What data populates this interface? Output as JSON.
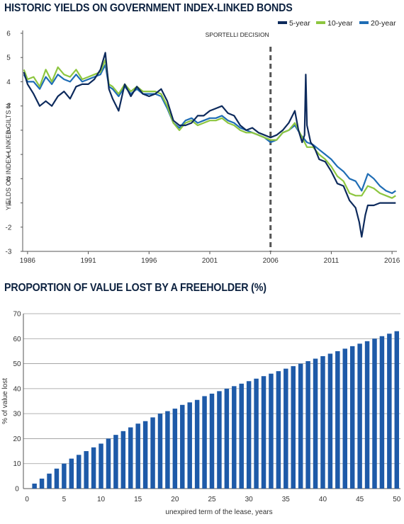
{
  "chart_data": [
    {
      "type": "line",
      "title": "HISTORIC YIELDS ON GOVERNMENT INDEX-LINKED BONDS",
      "ylabel": "YIELDS ON INDEX-LINKED GILTS %",
      "xlabel": "",
      "xlim": [
        1985.6,
        2016.4
      ],
      "ylim": [
        -3,
        6
      ],
      "xticks": [
        "1986",
        "1991",
        "1996",
        "2001",
        "2006",
        "2011",
        "2016"
      ],
      "yticks": [
        "6",
        "5",
        "4",
        "3",
        "2",
        "1",
        "0",
        "-1",
        "-2",
        "-3"
      ],
      "grid": false,
      "legend": "top-right",
      "annotation": {
        "text": "SPORTELLI DECISION",
        "x": 2006
      },
      "series": [
        {
          "name": "5-year",
          "color": "#0d2a5c",
          "x": [
            1985.7,
            1986.0,
            1986.5,
            1987.0,
            1987.5,
            1988.0,
            1988.5,
            1989.0,
            1989.5,
            1990.0,
            1990.5,
            1991.0,
            1991.5,
            1992.0,
            1992.4,
            1992.7,
            1993.0,
            1993.5,
            1994.0,
            1994.5,
            1995.0,
            1995.5,
            1996.0,
            1996.5,
            1997.0,
            1997.5,
            1998.0,
            1998.5,
            1999.0,
            1999.5,
            2000.0,
            2000.5,
            2001.0,
            2001.5,
            2002.0,
            2002.5,
            2003.0,
            2003.5,
            2004.0,
            2004.5,
            2005.0,
            2005.5,
            2006.0,
            2006.5,
            2007.0,
            2007.5,
            2008.0,
            2008.3,
            2008.6,
            2008.8,
            2008.9,
            2009.0,
            2009.3,
            2009.6,
            2010.0,
            2010.5,
            2011.0,
            2011.5,
            2012.0,
            2012.5,
            2013.0,
            2013.3,
            2013.5,
            2013.8,
            2014.0,
            2014.5,
            2015.0,
            2015.5,
            2016.0,
            2016.3
          ],
          "y": [
            4.4,
            3.9,
            3.5,
            3.0,
            3.2,
            3.0,
            3.4,
            3.6,
            3.3,
            3.8,
            3.9,
            3.9,
            4.1,
            4.5,
            5.2,
            3.7,
            3.3,
            2.8,
            3.9,
            3.4,
            3.8,
            3.5,
            3.4,
            3.5,
            3.7,
            3.2,
            2.4,
            2.2,
            2.2,
            2.3,
            2.6,
            2.6,
            2.8,
            2.9,
            3.0,
            2.7,
            2.6,
            2.2,
            2.0,
            2.1,
            1.9,
            1.8,
            1.7,
            1.8,
            2.0,
            2.3,
            2.8,
            2.0,
            1.5,
            1.8,
            4.3,
            2.2,
            1.5,
            1.3,
            0.8,
            0.7,
            0.3,
            -0.2,
            -0.3,
            -0.9,
            -1.2,
            -1.8,
            -2.4,
            -1.5,
            -1.1,
            -1.1,
            -1.0,
            -1.0,
            -1.0,
            -1.0
          ]
        },
        {
          "name": "10-year",
          "color": "#8dc63f",
          "x": [
            1985.7,
            1986.0,
            1986.5,
            1987.0,
            1987.5,
            1988.0,
            1988.5,
            1989.0,
            1989.5,
            1990.0,
            1990.5,
            1991.0,
            1991.5,
            1992.0,
            1992.4,
            1992.7,
            1993.0,
            1993.5,
            1994.0,
            1994.5,
            1995.0,
            1995.5,
            1996.0,
            1996.5,
            1997.0,
            1997.5,
            1998.0,
            1998.5,
            1999.0,
            1999.5,
            2000.0,
            2000.5,
            2001.0,
            2001.5,
            2002.0,
            2002.5,
            2003.0,
            2003.5,
            2004.0,
            2004.5,
            2005.0,
            2005.5,
            2006.0,
            2006.5,
            2007.0,
            2007.5,
            2008.0,
            2008.5,
            2009.0,
            2009.5,
            2010.0,
            2010.5,
            2011.0,
            2011.5,
            2012.0,
            2012.5,
            2013.0,
            2013.5,
            2014.0,
            2014.5,
            2015.0,
            2015.5,
            2016.0,
            2016.3
          ],
          "y": [
            4.5,
            4.1,
            4.2,
            3.8,
            4.5,
            4.0,
            4.6,
            4.3,
            4.2,
            4.5,
            4.1,
            4.2,
            4.3,
            4.4,
            4.9,
            3.9,
            3.8,
            3.5,
            3.9,
            3.6,
            3.8,
            3.6,
            3.6,
            3.6,
            3.5,
            3.0,
            2.3,
            2.0,
            2.3,
            2.4,
            2.2,
            2.3,
            2.4,
            2.4,
            2.5,
            2.3,
            2.2,
            2.0,
            1.9,
            1.9,
            1.8,
            1.7,
            1.6,
            1.6,
            1.9,
            2.0,
            2.3,
            1.8,
            1.3,
            1.3,
            1.0,
            0.8,
            0.5,
            0.1,
            -0.1,
            -0.6,
            -0.7,
            -0.7,
            -0.3,
            -0.4,
            -0.6,
            -0.7,
            -0.8,
            -0.7
          ]
        },
        {
          "name": "20-year",
          "color": "#1f6db5",
          "x": [
            1985.7,
            1986.0,
            1986.5,
            1987.0,
            1987.5,
            1988.0,
            1988.5,
            1989.0,
            1989.5,
            1990.0,
            1990.5,
            1991.0,
            1991.5,
            1992.0,
            1992.4,
            1992.7,
            1993.0,
            1993.5,
            1994.0,
            1994.5,
            1995.0,
            1995.5,
            1996.0,
            1996.5,
            1997.0,
            1997.5,
            1998.0,
            1998.5,
            1999.0,
            1999.5,
            2000.0,
            2000.5,
            2001.0,
            2001.5,
            2002.0,
            2002.5,
            2003.0,
            2003.5,
            2004.0,
            2004.5,
            2005.0,
            2005.5,
            2006.0,
            2006.5,
            2007.0,
            2007.5,
            2008.0,
            2008.5,
            2009.0,
            2009.5,
            2010.0,
            2010.5,
            2011.0,
            2011.5,
            2012.0,
            2012.5,
            2013.0,
            2013.5,
            2014.0,
            2014.5,
            2015.0,
            2015.5,
            2016.0,
            2016.3
          ],
          "y": [
            4.3,
            4.0,
            4.0,
            3.7,
            4.2,
            3.9,
            4.3,
            4.1,
            4.0,
            4.3,
            4.0,
            4.1,
            4.2,
            4.3,
            4.7,
            3.8,
            3.7,
            3.4,
            3.8,
            3.5,
            3.7,
            3.5,
            3.5,
            3.5,
            3.4,
            2.9,
            2.3,
            2.1,
            2.4,
            2.5,
            2.3,
            2.4,
            2.5,
            2.5,
            2.6,
            2.4,
            2.3,
            2.1,
            2.0,
            1.9,
            1.8,
            1.7,
            1.5,
            1.6,
            1.9,
            2.0,
            2.2,
            1.8,
            1.5,
            1.4,
            1.2,
            1.0,
            0.8,
            0.5,
            0.3,
            0.0,
            -0.1,
            -0.5,
            0.2,
            0.0,
            -0.3,
            -0.5,
            -0.6,
            -0.5
          ]
        }
      ]
    },
    {
      "type": "bar",
      "title": "PROPORTION OF VALUE LOST BY A FREEHOLDER (%)",
      "xlabel": "unexpired term of the lease, years",
      "ylabel": "% of value lost",
      "ylim": [
        0,
        70
      ],
      "xlim": [
        -0.5,
        50.5
      ],
      "xticks": [
        "0",
        "5",
        "10",
        "15",
        "20",
        "25",
        "30",
        "35",
        "40",
        "45",
        "50"
      ],
      "yticks": [
        "70",
        "60",
        "50",
        "40",
        "30",
        "20",
        "10",
        "0"
      ],
      "grid": true,
      "color": "#1e5aa8",
      "categories": [
        1,
        2,
        3,
        4,
        5,
        6,
        7,
        8,
        9,
        10,
        11,
        12,
        13,
        14,
        15,
        16,
        17,
        18,
        19,
        20,
        21,
        22,
        23,
        24,
        25,
        26,
        27,
        28,
        29,
        30,
        31,
        32,
        33,
        34,
        35,
        36,
        37,
        38,
        39,
        40,
        41,
        42,
        43,
        44,
        45,
        46,
        47,
        48,
        49,
        50
      ],
      "values": [
        2,
        4,
        6,
        8,
        10,
        12,
        13.5,
        15,
        16.5,
        18,
        20,
        21.5,
        23,
        24.5,
        26,
        27,
        28.5,
        30,
        31,
        32,
        33.5,
        34.5,
        35.5,
        37,
        38,
        39,
        40,
        41,
        42,
        43,
        44,
        45,
        46,
        47,
        48,
        49,
        50,
        51,
        52,
        53,
        54,
        55,
        56,
        57,
        58,
        59,
        60,
        61,
        62,
        63
      ]
    }
  ]
}
